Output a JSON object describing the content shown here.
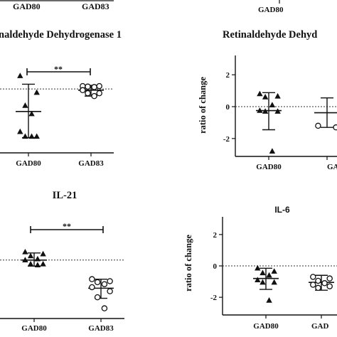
{
  "top_strip": {
    "left_labels": [
      "GAD80",
      "GAD83"
    ],
    "right_labels": [
      "GAD80"
    ]
  },
  "chart_data": [
    {
      "panel": "top-left",
      "type": "scatter",
      "title": "naldehyde Dehydrogenase 1",
      "categories": [
        "GAD80",
        "GAD83"
      ],
      "ylim": [
        -2.6,
        1.2
      ],
      "significance": "**",
      "series": [
        {
          "category": "GAD80",
          "marker": "triangle-filled",
          "values": [
            0.55,
            -0.15,
            -0.7,
            -1.05,
            -1.8,
            -2.0,
            -2.0,
            -2.0
          ],
          "mean": -0.95,
          "sd_low": -2.05,
          "sd_high": 0.2
        },
        {
          "category": "GAD83",
          "marker": "circle-open",
          "values": [
            0.12,
            0.12,
            0.1,
            0.08,
            -0.05,
            -0.18,
            -0.18,
            -0.3
          ],
          "mean": -0.05,
          "sd_low": -0.3,
          "sd_high": 0.15
        }
      ]
    },
    {
      "panel": "top-right",
      "type": "scatter",
      "title": "Retinaldehyde Dehyd",
      "ylabel": "ratio of change",
      "yticks": [
        2,
        0,
        -2
      ],
      "categories": [
        "GAD80",
        "GA"
      ],
      "ylim": [
        -2.9,
        2.9
      ],
      "series": [
        {
          "category": "GAD80",
          "marker": "triangle-filled",
          "values": [
            0.8,
            0.65,
            0.6,
            0.1,
            -0.25,
            -0.3,
            -0.3,
            -2.8
          ],
          "mean": -0.25,
          "sd_low": -1.45,
          "sd_high": 0.88
        },
        {
          "category": "GA",
          "marker": "circle-open",
          "values": [
            -1.2,
            -1.3
          ],
          "mean": -0.38,
          "sd_low": -1.3,
          "sd_high": 0.55
        }
      ]
    },
    {
      "panel": "bottom-left",
      "type": "scatter",
      "title": "IL-21",
      "categories": [
        "GAD80",
        "GAD83"
      ],
      "ylim": [
        -2.8,
        1.9
      ],
      "significance": "**",
      "series": [
        {
          "category": "GAD80",
          "marker": "triangle-filled",
          "values": [
            0.4,
            0.3,
            0.2,
            0.05,
            0.0,
            -0.2,
            -0.2,
            -0.25
          ],
          "mean": 0.0,
          "sd_low": -0.3,
          "sd_high": 0.35
        },
        {
          "category": "GAD83",
          "marker": "circle-open",
          "values": [
            -0.95,
            -1.05,
            -1.1,
            -1.2,
            -1.35,
            -1.55,
            -1.85,
            -2.4
          ],
          "mean": -1.4,
          "sd_low": -1.9,
          "sd_high": -0.95
        }
      ]
    },
    {
      "panel": "bottom-right",
      "type": "scatter",
      "title": "IL-6",
      "ylabel": "ratio of change",
      "yticks": [
        2,
        0,
        -2
      ],
      "categories": [
        "GAD80",
        "GAD"
      ],
      "ylim": [
        -2.9,
        2.9
      ],
      "series": [
        {
          "category": "GAD80",
          "marker": "triangle-filled",
          "values": [
            -0.15,
            -0.35,
            -0.45,
            -0.6,
            -0.9,
            -1.05,
            -1.05,
            -2.2
          ],
          "mean": -0.8,
          "sd_low": -1.5,
          "sd_high": -0.15
        },
        {
          "category": "GAD",
          "marker": "circle-open",
          "values": [
            -0.7,
            -0.8,
            -0.95,
            -1.1,
            -1.2,
            -1.3,
            -1.4
          ],
          "mean": -1.05,
          "sd_low": -1.55,
          "sd_high": -0.6
        }
      ]
    }
  ]
}
